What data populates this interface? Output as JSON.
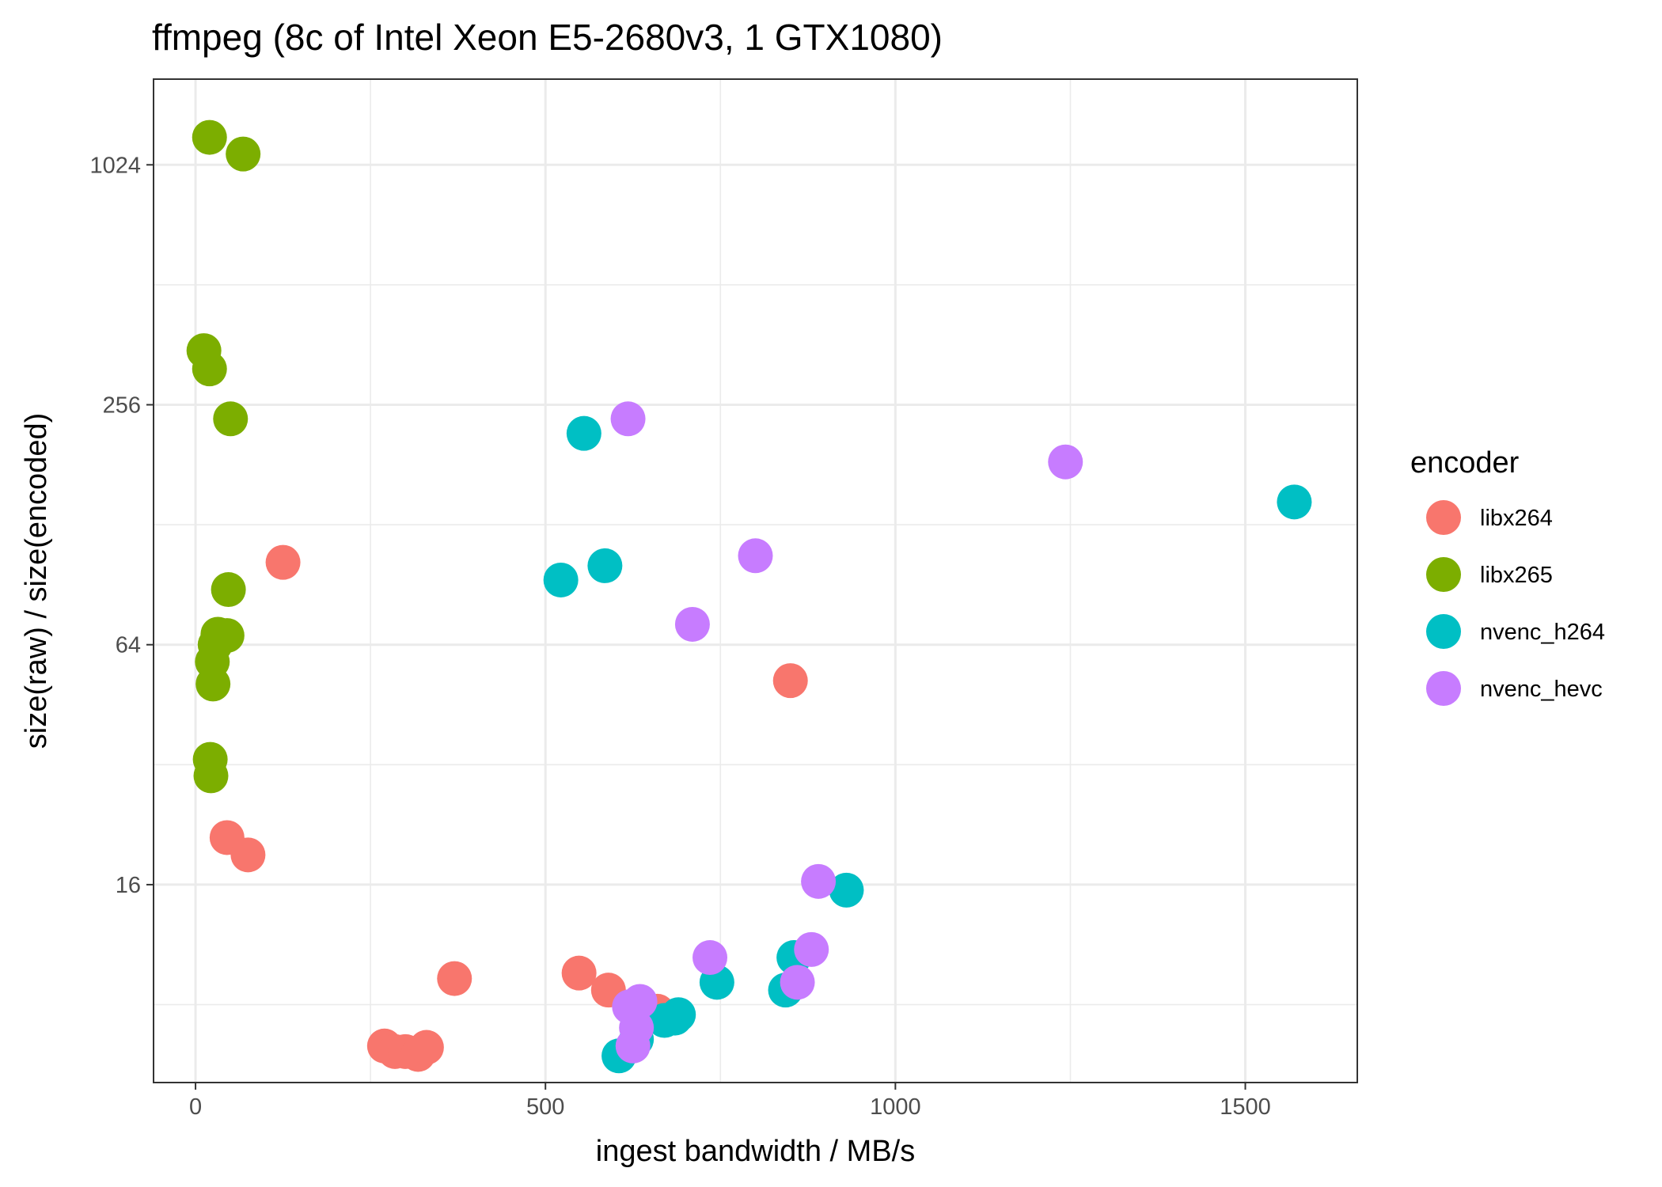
{
  "chart_data": {
    "type": "scatter",
    "title": "ffmpeg (8c of Intel Xeon E5-2680v3, 1 GTX1080)",
    "xlabel": "ingest bandwidth / MB/s",
    "ylabel": "size(raw) / size(encoded)",
    "x_range": [
      -60,
      1660
    ],
    "y_range": [
      5.1,
      1680
    ],
    "y_scale": "log2",
    "x_ticks": [
      0,
      500,
      1000,
      1500
    ],
    "x_tick_labels": [
      "0",
      "500",
      "1000",
      "1500"
    ],
    "y_ticks": [
      16,
      64,
      256,
      1024
    ],
    "y_tick_labels": [
      "16",
      "64",
      "256",
      "1024"
    ],
    "grid": true,
    "legend": {
      "title": "encoder",
      "position": "right"
    },
    "series": [
      {
        "name": "libx264",
        "color": "#F8766D",
        "points": [
          {
            "x": 125,
            "y": 103
          },
          {
            "x": 45,
            "y": 21
          },
          {
            "x": 75,
            "y": 19
          },
          {
            "x": 370,
            "y": 9.3
          },
          {
            "x": 548,
            "y": 9.6
          },
          {
            "x": 590,
            "y": 8.7
          },
          {
            "x": 850,
            "y": 52
          },
          {
            "x": 660,
            "y": 7.7
          },
          {
            "x": 640,
            "y": 7.8
          },
          {
            "x": 270,
            "y": 6.3
          },
          {
            "x": 285,
            "y": 6.1
          },
          {
            "x": 300,
            "y": 6.1
          },
          {
            "x": 318,
            "y": 6.0
          },
          {
            "x": 330,
            "y": 6.25
          }
        ]
      },
      {
        "name": "libx265",
        "color": "#7CAE00",
        "points": [
          {
            "x": 20,
            "y": 1200
          },
          {
            "x": 68,
            "y": 1090
          },
          {
            "x": 12,
            "y": 350
          },
          {
            "x": 20,
            "y": 315
          },
          {
            "x": 50,
            "y": 236
          },
          {
            "x": 47,
            "y": 88
          },
          {
            "x": 32,
            "y": 68
          },
          {
            "x": 45,
            "y": 67.5
          },
          {
            "x": 28,
            "y": 64
          },
          {
            "x": 24,
            "y": 58
          },
          {
            "x": 25,
            "y": 51
          },
          {
            "x": 21,
            "y": 33
          },
          {
            "x": 22,
            "y": 30
          }
        ]
      },
      {
        "name": "nvenc_h264",
        "color": "#00BFC4",
        "points": [
          {
            "x": 555,
            "y": 217
          },
          {
            "x": 585,
            "y": 101
          },
          {
            "x": 522,
            "y": 93
          },
          {
            "x": 1570,
            "y": 146
          },
          {
            "x": 930,
            "y": 15.5
          },
          {
            "x": 855,
            "y": 10.5
          },
          {
            "x": 745,
            "y": 9.1
          },
          {
            "x": 843,
            "y": 8.7
          },
          {
            "x": 690,
            "y": 7.55
          },
          {
            "x": 685,
            "y": 7.4
          },
          {
            "x": 670,
            "y": 7.3
          },
          {
            "x": 630,
            "y": 6.55
          },
          {
            "x": 605,
            "y": 5.95
          }
        ]
      },
      {
        "name": "nvenc_hevc",
        "color": "#C77CFF",
        "points": [
          {
            "x": 618,
            "y": 236
          },
          {
            "x": 1243,
            "y": 184
          },
          {
            "x": 800,
            "y": 107
          },
          {
            "x": 710,
            "y": 72
          },
          {
            "x": 890,
            "y": 16.3
          },
          {
            "x": 880,
            "y": 11.0
          },
          {
            "x": 735,
            "y": 10.5
          },
          {
            "x": 860,
            "y": 9.1
          },
          {
            "x": 635,
            "y": 8.15
          },
          {
            "x": 620,
            "y": 7.9
          },
          {
            "x": 630,
            "y": 7.0
          },
          {
            "x": 625,
            "y": 6.3
          }
        ]
      }
    ]
  }
}
